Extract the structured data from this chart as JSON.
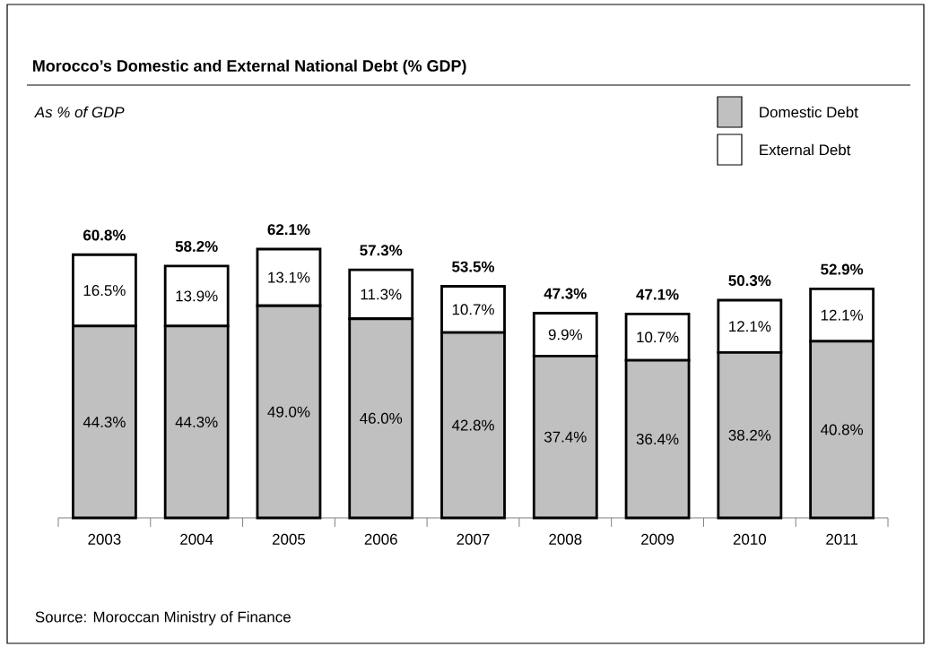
{
  "chart_data": {
    "type": "bar",
    "stacked": true,
    "title": "Morocco’s Domestic and External National Debt (% GDP)",
    "subtitle": "As % of GDP",
    "categories": [
      "2003",
      "2004",
      "2005",
      "2006",
      "2007",
      "2008",
      "2009",
      "2010",
      "2011"
    ],
    "series": [
      {
        "name": "Domestic Debt",
        "color": "#c0c0c0",
        "values": [
          44.3,
          44.3,
          49.0,
          46.0,
          42.8,
          37.4,
          36.4,
          38.2,
          40.8
        ],
        "value_labels": [
          "44.3%",
          "44.3%",
          "49.0%",
          "46.0%",
          "42.8%",
          "37.4%",
          "36.4%",
          "38.2%",
          "40.8%"
        ]
      },
      {
        "name": "External Debt",
        "color": "#ffffff",
        "values": [
          16.5,
          13.9,
          13.1,
          11.3,
          10.7,
          9.9,
          10.7,
          12.1,
          12.1
        ],
        "value_labels": [
          "16.5%",
          "13.9%",
          "13.1%",
          "11.3%",
          "10.7%",
          "9.9%",
          "10.7%",
          "12.1%",
          "12.1%"
        ]
      }
    ],
    "totals": [
      "60.8%",
      "58.2%",
      "62.1%",
      "57.3%",
      "53.5%",
      "47.3%",
      "47.1%",
      "50.3%",
      "52.9%"
    ],
    "legend": "top right",
    "annotations": [
      "Source: Moroccan Ministry of Finance"
    ]
  }
}
